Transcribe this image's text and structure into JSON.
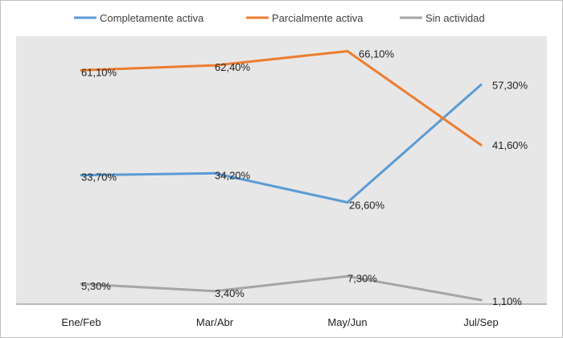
{
  "chart_data": {
    "type": "line",
    "title": "",
    "xlabel": "",
    "ylabel": "",
    "categories": [
      "Ene/Feb",
      "Mar/Abr",
      "May/Jun",
      "Jul/Sep"
    ],
    "ylim": [
      0,
      70
    ],
    "grid": false,
    "legend_position": "top",
    "series": [
      {
        "name": "Completamente activa",
        "color": "#5b9bd5",
        "values": [
          33.7,
          34.2,
          26.6,
          57.3
        ],
        "labels": [
          "33,70%",
          "34,20%",
          "26,60%",
          "57,30%"
        ]
      },
      {
        "name": "Parcialmente activa",
        "color": "#ed7d31",
        "values": [
          61.1,
          62.4,
          66.1,
          41.6
        ],
        "labels": [
          "61,10%",
          "62,40%",
          "66,10%",
          "41,60%"
        ]
      },
      {
        "name": "Sin actividad",
        "color": "#a5a5a5",
        "values": [
          5.3,
          3.4,
          7.3,
          1.1
        ],
        "labels": [
          "5,30%",
          "3,40%",
          "7,30%",
          "1,10%"
        ]
      }
    ]
  },
  "style": {
    "plot_background": "#e7e7e7",
    "frame_color": "#bfbfbf",
    "axis_color": "#7f7f7f"
  }
}
